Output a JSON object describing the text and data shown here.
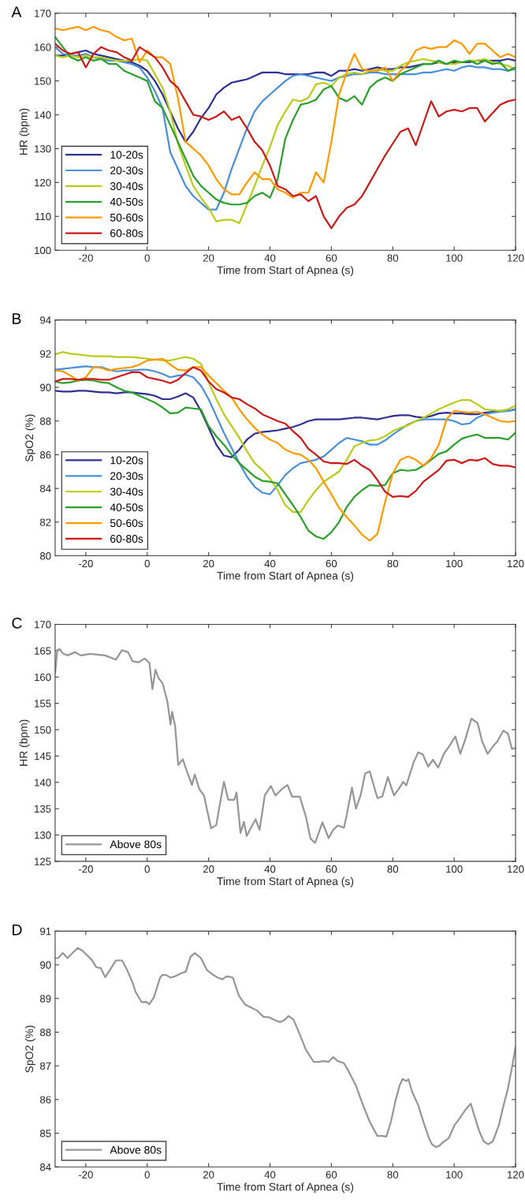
{
  "chart_data": [
    {
      "type": "line",
      "title": "A",
      "xlabel": "Time from Start of Apnea (s)",
      "ylabel": "HR (bpm)",
      "xlim": [
        -30,
        120
      ],
      "ylim": [
        100,
        170
      ],
      "xticks": [
        -20,
        0,
        20,
        40,
        60,
        80,
        100,
        120
      ],
      "yticks": [
        100,
        110,
        120,
        130,
        140,
        150,
        160,
        170
      ],
      "legend": "bottom left",
      "x": [
        -30,
        -27.5,
        -25,
        -22.5,
        -20,
        -17.5,
        -15,
        -12.5,
        -10,
        -7.5,
        -5,
        -2.5,
        0,
        2.5,
        5,
        7.5,
        10,
        12.5,
        15,
        17.5,
        20,
        22.5,
        25,
        27.5,
        30,
        32.5,
        35,
        37.5,
        40,
        42.5,
        45,
        47.5,
        50,
        52.5,
        55,
        57.5,
        60,
        62.5,
        65,
        67.5,
        70,
        72.5,
        75,
        77.5,
        80,
        82.5,
        85,
        87.5,
        90,
        92.5,
        95,
        97.5,
        100,
        102.5,
        105,
        107.5,
        110,
        112.5,
        115,
        117.5,
        120
      ],
      "series": [
        {
          "name": "10-20s",
          "color": "#2e3192",
          "values": [
            157.5,
            157.5,
            158,
            158.5,
            159,
            158,
            157.5,
            157,
            156.5,
            156,
            155.5,
            154.5,
            153,
            150,
            146,
            141,
            136,
            132,
            135,
            139,
            142,
            146,
            148,
            149.5,
            150,
            150.5,
            151.5,
            152.5,
            152.5,
            152.5,
            152,
            152,
            152,
            152,
            152.5,
            152.5,
            151.5,
            153,
            153,
            153.5,
            153,
            153.5,
            154,
            153.5,
            153.5,
            154,
            154,
            154.5,
            155,
            155,
            155.5,
            155,
            155.5,
            155.5,
            155.5,
            156,
            156,
            156,
            156,
            156.5,
            156
          ]
        },
        {
          "name": "20-30s",
          "color": "#4a90d9",
          "values": [
            160,
            158,
            157.5,
            157.5,
            158,
            157,
            156.5,
            156,
            156,
            155.5,
            155,
            154,
            151,
            147,
            142,
            129,
            124,
            119,
            116,
            114,
            112,
            112,
            117,
            124,
            130,
            136,
            141,
            144,
            146,
            148,
            150,
            151.5,
            152,
            151.5,
            151,
            150.5,
            150,
            151,
            151.5,
            152,
            152,
            152.5,
            152.5,
            152,
            152,
            152,
            152,
            152,
            152.5,
            152.5,
            153,
            153.5,
            153,
            154,
            154.5,
            154,
            154,
            153.5,
            153.5,
            153,
            153.5
          ]
        },
        {
          "name": "30-40s",
          "color": "#b8cc1a",
          "values": [
            157.5,
            157,
            157.5,
            157,
            157.5,
            157,
            157,
            156.5,
            156,
            156,
            156,
            156.5,
            156,
            152,
            148,
            141,
            131.5,
            125,
            119,
            115.5,
            112.5,
            108.5,
            109,
            109,
            108,
            113.5,
            119,
            125,
            130.5,
            137,
            141,
            144.5,
            144,
            145,
            149,
            149.5,
            148.5,
            151,
            152,
            152.5,
            152,
            153,
            153.5,
            153,
            153,
            154.5,
            155.5,
            156,
            156.5,
            156,
            155.5,
            155,
            155,
            155.5,
            156,
            156,
            156.5,
            155.5,
            155,
            154.5,
            153.5
          ]
        },
        {
          "name": "40-50s",
          "color": "#2ca02c",
          "values": [
            163,
            160,
            157,
            156,
            157,
            156,
            156.5,
            155,
            155,
            153,
            152,
            151,
            150,
            144,
            142,
            137,
            132,
            127,
            122,
            119,
            117,
            115,
            114,
            113.5,
            113.5,
            114,
            116,
            117,
            115.5,
            121,
            133,
            138.5,
            143,
            143.5,
            144.5,
            147.5,
            148.5,
            145,
            144,
            145.5,
            143,
            148,
            150,
            151,
            150,
            152,
            153,
            154,
            155,
            155,
            156,
            155,
            156,
            155.5,
            156,
            155,
            156,
            155,
            155.5,
            153,
            154
          ]
        },
        {
          "name": "50-60s",
          "color": "#ff9a00",
          "values": [
            165.5,
            165,
            165.5,
            166,
            165,
            166,
            165,
            164.5,
            163,
            162,
            162.5,
            155.5,
            159,
            157,
            157,
            155,
            145,
            132,
            130,
            128,
            125,
            121,
            118,
            116.5,
            116.5,
            120,
            123,
            121,
            121,
            118,
            117,
            115.5,
            117,
            117,
            123,
            120,
            132,
            146,
            152.5,
            158,
            153.5,
            153,
            153,
            154,
            150,
            153,
            155,
            159,
            160,
            159.5,
            160,
            160,
            162,
            161,
            158,
            161,
            161,
            159,
            157,
            158,
            157
          ]
        },
        {
          "name": "60-80s",
          "color": "#cc1a1a",
          "values": [
            161,
            159,
            158,
            158.5,
            154,
            158,
            160,
            159,
            158.5,
            157,
            156,
            160,
            158.5,
            157,
            154,
            150,
            148,
            144,
            140,
            139.5,
            138.5,
            139.5,
            141,
            138.5,
            139.5,
            136,
            132,
            129.5,
            125,
            119,
            118,
            116,
            116.5,
            114.5,
            116,
            110,
            106.5,
            110,
            112.5,
            113.5,
            116,
            120,
            124,
            128,
            131.5,
            135,
            136,
            131,
            137.5,
            144,
            139.5,
            141,
            141.5,
            141,
            142,
            142,
            138,
            140.5,
            143,
            144,
            144.5
          ]
        }
      ]
    },
    {
      "type": "line",
      "title": "B",
      "xlabel": "Time from Start of Apnea (s)",
      "ylabel": "SpO2 (%)",
      "xlim": [
        -30,
        120
      ],
      "ylim": [
        80,
        94
      ],
      "xticks": [
        -20,
        0,
        20,
        40,
        60,
        80,
        100,
        120
      ],
      "yticks": [
        80,
        82,
        84,
        86,
        88,
        90,
        92,
        94
      ],
      "legend": "bottom left",
      "x": [
        -30,
        -27.5,
        -25,
        -22.5,
        -20,
        -17.5,
        -15,
        -12.5,
        -10,
        -7.5,
        -5,
        -2.5,
        0,
        2.5,
        5,
        7.5,
        10,
        12.5,
        15,
        17.5,
        20,
        22.5,
        25,
        27.5,
        30,
        32.5,
        35,
        37.5,
        40,
        42.5,
        45,
        47.5,
        50,
        52.5,
        55,
        57.5,
        60,
        62.5,
        65,
        67.5,
        70,
        72.5,
        75,
        77.5,
        80,
        82.5,
        85,
        87.5,
        90,
        92.5,
        95,
        97.5,
        100,
        102.5,
        105,
        107.5,
        110,
        112.5,
        115,
        117.5,
        120
      ],
      "series": [
        {
          "name": "10-20s",
          "color": "#2e3192",
          "values": [
            89.8,
            89.75,
            89.75,
            89.8,
            89.8,
            89.75,
            89.7,
            89.7,
            89.65,
            89.7,
            89.7,
            89.65,
            89.6,
            89.5,
            89.3,
            89.3,
            89.45,
            89.65,
            89.4,
            88.6,
            87.6,
            86.6,
            85.95,
            85.85,
            86.3,
            86.9,
            87.25,
            87.35,
            87.4,
            87.45,
            87.55,
            87.65,
            87.8,
            88.0,
            88.1,
            88.1,
            88.1,
            88.1,
            88.15,
            88.2,
            88.2,
            88.15,
            88.1,
            88.2,
            88.3,
            88.35,
            88.35,
            88.25,
            88.2,
            88.3,
            88.45,
            88.5,
            88.45,
            88.45,
            88.4,
            88.4,
            88.5,
            88.55,
            88.6,
            88.6,
            88.7
          ]
        },
        {
          "name": "20-30s",
          "color": "#4a90d9",
          "values": [
            91.05,
            91.1,
            91.15,
            91.2,
            91.25,
            91.2,
            91.2,
            91.05,
            90.95,
            91.0,
            91.0,
            91.05,
            91.05,
            90.95,
            90.8,
            90.6,
            90.7,
            90.75,
            90.6,
            90.1,
            89.3,
            88.3,
            87.3,
            86.4,
            85.5,
            84.7,
            84.1,
            83.75,
            83.65,
            84.2,
            84.8,
            85.2,
            85.5,
            85.6,
            85.7,
            85.9,
            86.3,
            86.7,
            87.0,
            86.9,
            86.8,
            86.6,
            86.6,
            86.85,
            87.2,
            87.5,
            87.8,
            88.0,
            88.1,
            88.1,
            88.1,
            88.1,
            88.0,
            87.8,
            87.85,
            88.2,
            88.4,
            88.5,
            88.55,
            88.6,
            88.7
          ]
        },
        {
          "name": "30-40s",
          "color": "#b8cc1a",
          "values": [
            91.95,
            92.1,
            92.0,
            91.95,
            91.9,
            91.85,
            91.85,
            91.85,
            91.8,
            91.8,
            91.8,
            91.75,
            91.7,
            91.65,
            91.6,
            91.6,
            91.7,
            91.8,
            91.7,
            91.4,
            90.3,
            89.3,
            88.4,
            87.7,
            87.0,
            86.2,
            85.5,
            85.1,
            84.6,
            83.9,
            83.0,
            82.6,
            82.6,
            83.3,
            83.9,
            84.4,
            84.7,
            85.0,
            85.7,
            86.5,
            86.7,
            86.85,
            86.9,
            87.1,
            87.4,
            87.6,
            87.75,
            88.0,
            88.2,
            88.45,
            88.7,
            88.9,
            89.1,
            89.25,
            89.25,
            89.0,
            88.7,
            88.65,
            88.6,
            88.7,
            88.9
          ]
        },
        {
          "name": "40-50s",
          "color": "#2ca02c",
          "values": [
            90.35,
            90.25,
            90.3,
            90.4,
            90.45,
            90.4,
            90.3,
            90.25,
            90.0,
            89.8,
            89.7,
            89.5,
            89.3,
            89.1,
            88.8,
            88.45,
            88.5,
            88.8,
            88.75,
            88.7,
            87.7,
            87.1,
            86.6,
            86.0,
            85.5,
            85.1,
            84.7,
            84.45,
            84.4,
            84.3,
            83.65,
            83.0,
            82.3,
            81.5,
            81.15,
            81.0,
            81.4,
            82.0,
            82.9,
            83.5,
            83.9,
            84.2,
            84.15,
            84.2,
            84.9,
            85.1,
            85.05,
            85.1,
            85.35,
            85.7,
            86.05,
            86.2,
            86.6,
            86.95,
            87.1,
            87.2,
            87.0,
            87.0,
            87.0,
            86.9,
            87.3
          ]
        },
        {
          "name": "50-60s",
          "color": "#ff9a00",
          "values": [
            91.0,
            90.95,
            90.7,
            90.4,
            90.6,
            91.2,
            91.15,
            91.0,
            91.1,
            91.15,
            91.2,
            91.35,
            91.6,
            91.65,
            91.7,
            91.35,
            91.05,
            91.0,
            91.2,
            91.2,
            90.7,
            90.25,
            89.8,
            89.4,
            88.7,
            88.1,
            87.6,
            87.2,
            86.9,
            86.7,
            86.3,
            86.1,
            86.0,
            85.7,
            85.2,
            84.4,
            83.65,
            82.85,
            82.3,
            81.8,
            81.25,
            80.9,
            81.3,
            83.2,
            84.9,
            85.7,
            85.9,
            85.7,
            85.35,
            85.8,
            86.6,
            88.1,
            88.6,
            88.55,
            88.5,
            88.55,
            88.4,
            88.2,
            88.0,
            87.95,
            88.0
          ]
        },
        {
          "name": "60-80s",
          "color": "#cc1a1a",
          "values": [
            90.35,
            90.5,
            90.5,
            90.45,
            90.5,
            90.5,
            90.45,
            90.45,
            90.6,
            90.75,
            90.9,
            90.9,
            90.6,
            90.5,
            90.4,
            90.25,
            90.45,
            90.85,
            91.2,
            91.0,
            90.35,
            89.9,
            89.7,
            89.4,
            89.3,
            89.0,
            88.75,
            88.4,
            88.2,
            88.0,
            87.85,
            87.4,
            87.0,
            86.35,
            86.0,
            85.6,
            85.5,
            85.5,
            85.45,
            85.7,
            85.35,
            85.1,
            84.5,
            83.8,
            83.5,
            83.55,
            83.5,
            83.85,
            84.4,
            84.75,
            85.1,
            85.65,
            85.7,
            85.5,
            85.7,
            85.65,
            85.8,
            85.45,
            85.35,
            85.35,
            85.25
          ]
        }
      ]
    },
    {
      "type": "line",
      "title": "C",
      "xlabel": "Time from Start of Apnea (s)",
      "ylabel": "HR (bpm)",
      "xlim": [
        -30,
        120
      ],
      "ylim": [
        125,
        170
      ],
      "xticks": [
        -20,
        0,
        20,
        40,
        60,
        80,
        100,
        120
      ],
      "yticks": [
        125,
        130,
        135,
        140,
        145,
        150,
        155,
        160,
        165,
        170
      ],
      "legend": "bottom left",
      "series": [
        {
          "name": "Above 80s",
          "color": "#969696",
          "x": [
            -30,
            -29.3,
            -28.5,
            -27.5,
            -26,
            -23.6,
            -21.6,
            -18.6,
            -13.7,
            -10.2,
            -8.2,
            -6.2,
            -4.8,
            -2.8,
            -0.8,
            0.7,
            1.7,
            2.7,
            3.7,
            5.1,
            6.6,
            7.6,
            8.1,
            9.1,
            10.1,
            11.6,
            13.1,
            14.6,
            15.5,
            17.0,
            18.5,
            20.8,
            22.5,
            23.5,
            25.0,
            26.4,
            28.4,
            29.1,
            30.4,
            31.5,
            32.4,
            33.9,
            35.3,
            36.6,
            38.3,
            40.3,
            41.8,
            43.8,
            45.7,
            47.2,
            49.7,
            51.7,
            53.2,
            54.7,
            57.1,
            59.1,
            60.6,
            62.1,
            64.1,
            65.0,
            66.7,
            68.0,
            69.5,
            71.0,
            72.5,
            75.0,
            76.6,
            78.4,
            80.4,
            81.9,
            83.4,
            84.4,
            86.8,
            88.3,
            89.8,
            91.5,
            93.1,
            94.8,
            96.7,
            98.2,
            100.4,
            102.0,
            103.7,
            105.6,
            107.6,
            109.1,
            110.9,
            112.6,
            114.1,
            116.0,
            117.5,
            118.8,
            120
          ],
          "values": [
            160.7,
            165.1,
            165.3,
            164.5,
            164.1,
            164.7,
            164.1,
            164.4,
            164.1,
            163.3,
            165.1,
            164.7,
            163.0,
            162.8,
            163.5,
            162.7,
            157.7,
            161.4,
            159.8,
            158.7,
            155.3,
            151,
            153.4,
            150.7,
            143.3,
            144.4,
            141.8,
            139.5,
            141.5,
            138.7,
            137.5,
            131.3,
            131.9,
            135.3,
            140.1,
            136.7,
            136.7,
            138.1,
            130.4,
            132.5,
            129.8,
            131.5,
            133,
            131,
            137.5,
            139.3,
            137.5,
            138.7,
            139.5,
            137.3,
            137.3,
            133.5,
            129.3,
            128.5,
            132.4,
            129.4,
            131,
            131.8,
            131.4,
            133.8,
            139,
            135,
            137.5,
            141.7,
            142.1,
            137,
            137.3,
            141,
            137.5,
            138.7,
            140.1,
            139.4,
            143.8,
            145.7,
            145.3,
            143,
            144.3,
            142.8,
            145.5,
            146.7,
            148.7,
            145.4,
            148.3,
            152.1,
            151.3,
            147.8,
            145.4,
            146.8,
            147.8,
            149.8,
            149.3,
            146.4,
            146.5
          ]
        }
      ]
    },
    {
      "type": "line",
      "title": "D",
      "xlabel": "Time from Start of Apnea (s)",
      "ylabel": "SpO2 (%)",
      "xlim": [
        -30,
        120
      ],
      "ylim": [
        84,
        91
      ],
      "xticks": [
        -20,
        0,
        20,
        40,
        60,
        80,
        100,
        120
      ],
      "yticks": [
        84,
        85,
        86,
        87,
        88,
        89,
        90,
        91
      ],
      "legend": "bottom left",
      "series": [
        {
          "name": "Above 80s",
          "color": "#969696",
          "x": [
            -30,
            -29.0,
            -27.5,
            -26,
            -24.1,
            -22.6,
            -21.1,
            -20.1,
            -18.1,
            -16.6,
            -15.1,
            -13.7,
            -12.2,
            -10.2,
            -8.2,
            -6.7,
            -4.8,
            -3.8,
            -1.8,
            -0.3,
            0.7,
            2.2,
            4.2,
            5.0,
            6.1,
            7.6,
            9.1,
            11.1,
            12.6,
            14.1,
            15.5,
            17.5,
            19.5,
            21.5,
            23.0,
            24.5,
            25.9,
            27.9,
            29.9,
            31.9,
            33.9,
            35.8,
            37.8,
            39.8,
            41.8,
            43.3,
            44.8,
            46.0,
            47.7,
            49.7,
            51.7,
            54.2,
            55.6,
            57.6,
            59.1,
            60.6,
            62.1,
            64.1,
            65.5,
            68.0,
            70.5,
            72.5,
            74.0,
            75.0,
            76.4,
            77.9,
            79.4,
            80.9,
            82.2,
            83.2,
            84.4,
            85.1,
            86.3,
            88.3,
            90.3,
            91.8,
            92.8,
            94.1,
            95.2,
            96.2,
            98.2,
            100.2,
            101.7,
            103.7,
            105.4,
            106.6,
            108.1,
            109.6,
            111.1,
            112.6,
            114.6,
            116.0,
            117.5,
            119.0,
            120
          ],
          "values": [
            90.2,
            90.2,
            90.35,
            90.2,
            90.37,
            90.5,
            90.42,
            90.33,
            90.15,
            89.93,
            89.9,
            89.63,
            89.84,
            90.13,
            90.13,
            89.88,
            89.48,
            89.2,
            88.89,
            88.9,
            88.83,
            89.04,
            89.62,
            89.7,
            89.7,
            89.62,
            89.66,
            89.75,
            89.8,
            90.24,
            90.35,
            90.2,
            89.84,
            89.7,
            89.62,
            89.57,
            89.66,
            89.62,
            89.08,
            88.82,
            88.73,
            88.64,
            88.46,
            88.44,
            88.35,
            88.3,
            88.37,
            88.48,
            88.37,
            87.93,
            87.48,
            87.12,
            87.12,
            87.14,
            87.12,
            87.26,
            87.14,
            87.08,
            86.86,
            86.41,
            85.79,
            85.34,
            85.08,
            84.92,
            84.92,
            84.9,
            85.34,
            85.97,
            86.41,
            86.61,
            86.55,
            86.6,
            86.23,
            85.83,
            85.25,
            84.85,
            84.67,
            84.59,
            84.63,
            84.72,
            84.85,
            85.25,
            85.43,
            85.7,
            85.88,
            85.52,
            85.08,
            84.76,
            84.67,
            84.76,
            85.25,
            85.79,
            86.32,
            87.03,
            87.57
          ]
        }
      ]
    }
  ]
}
